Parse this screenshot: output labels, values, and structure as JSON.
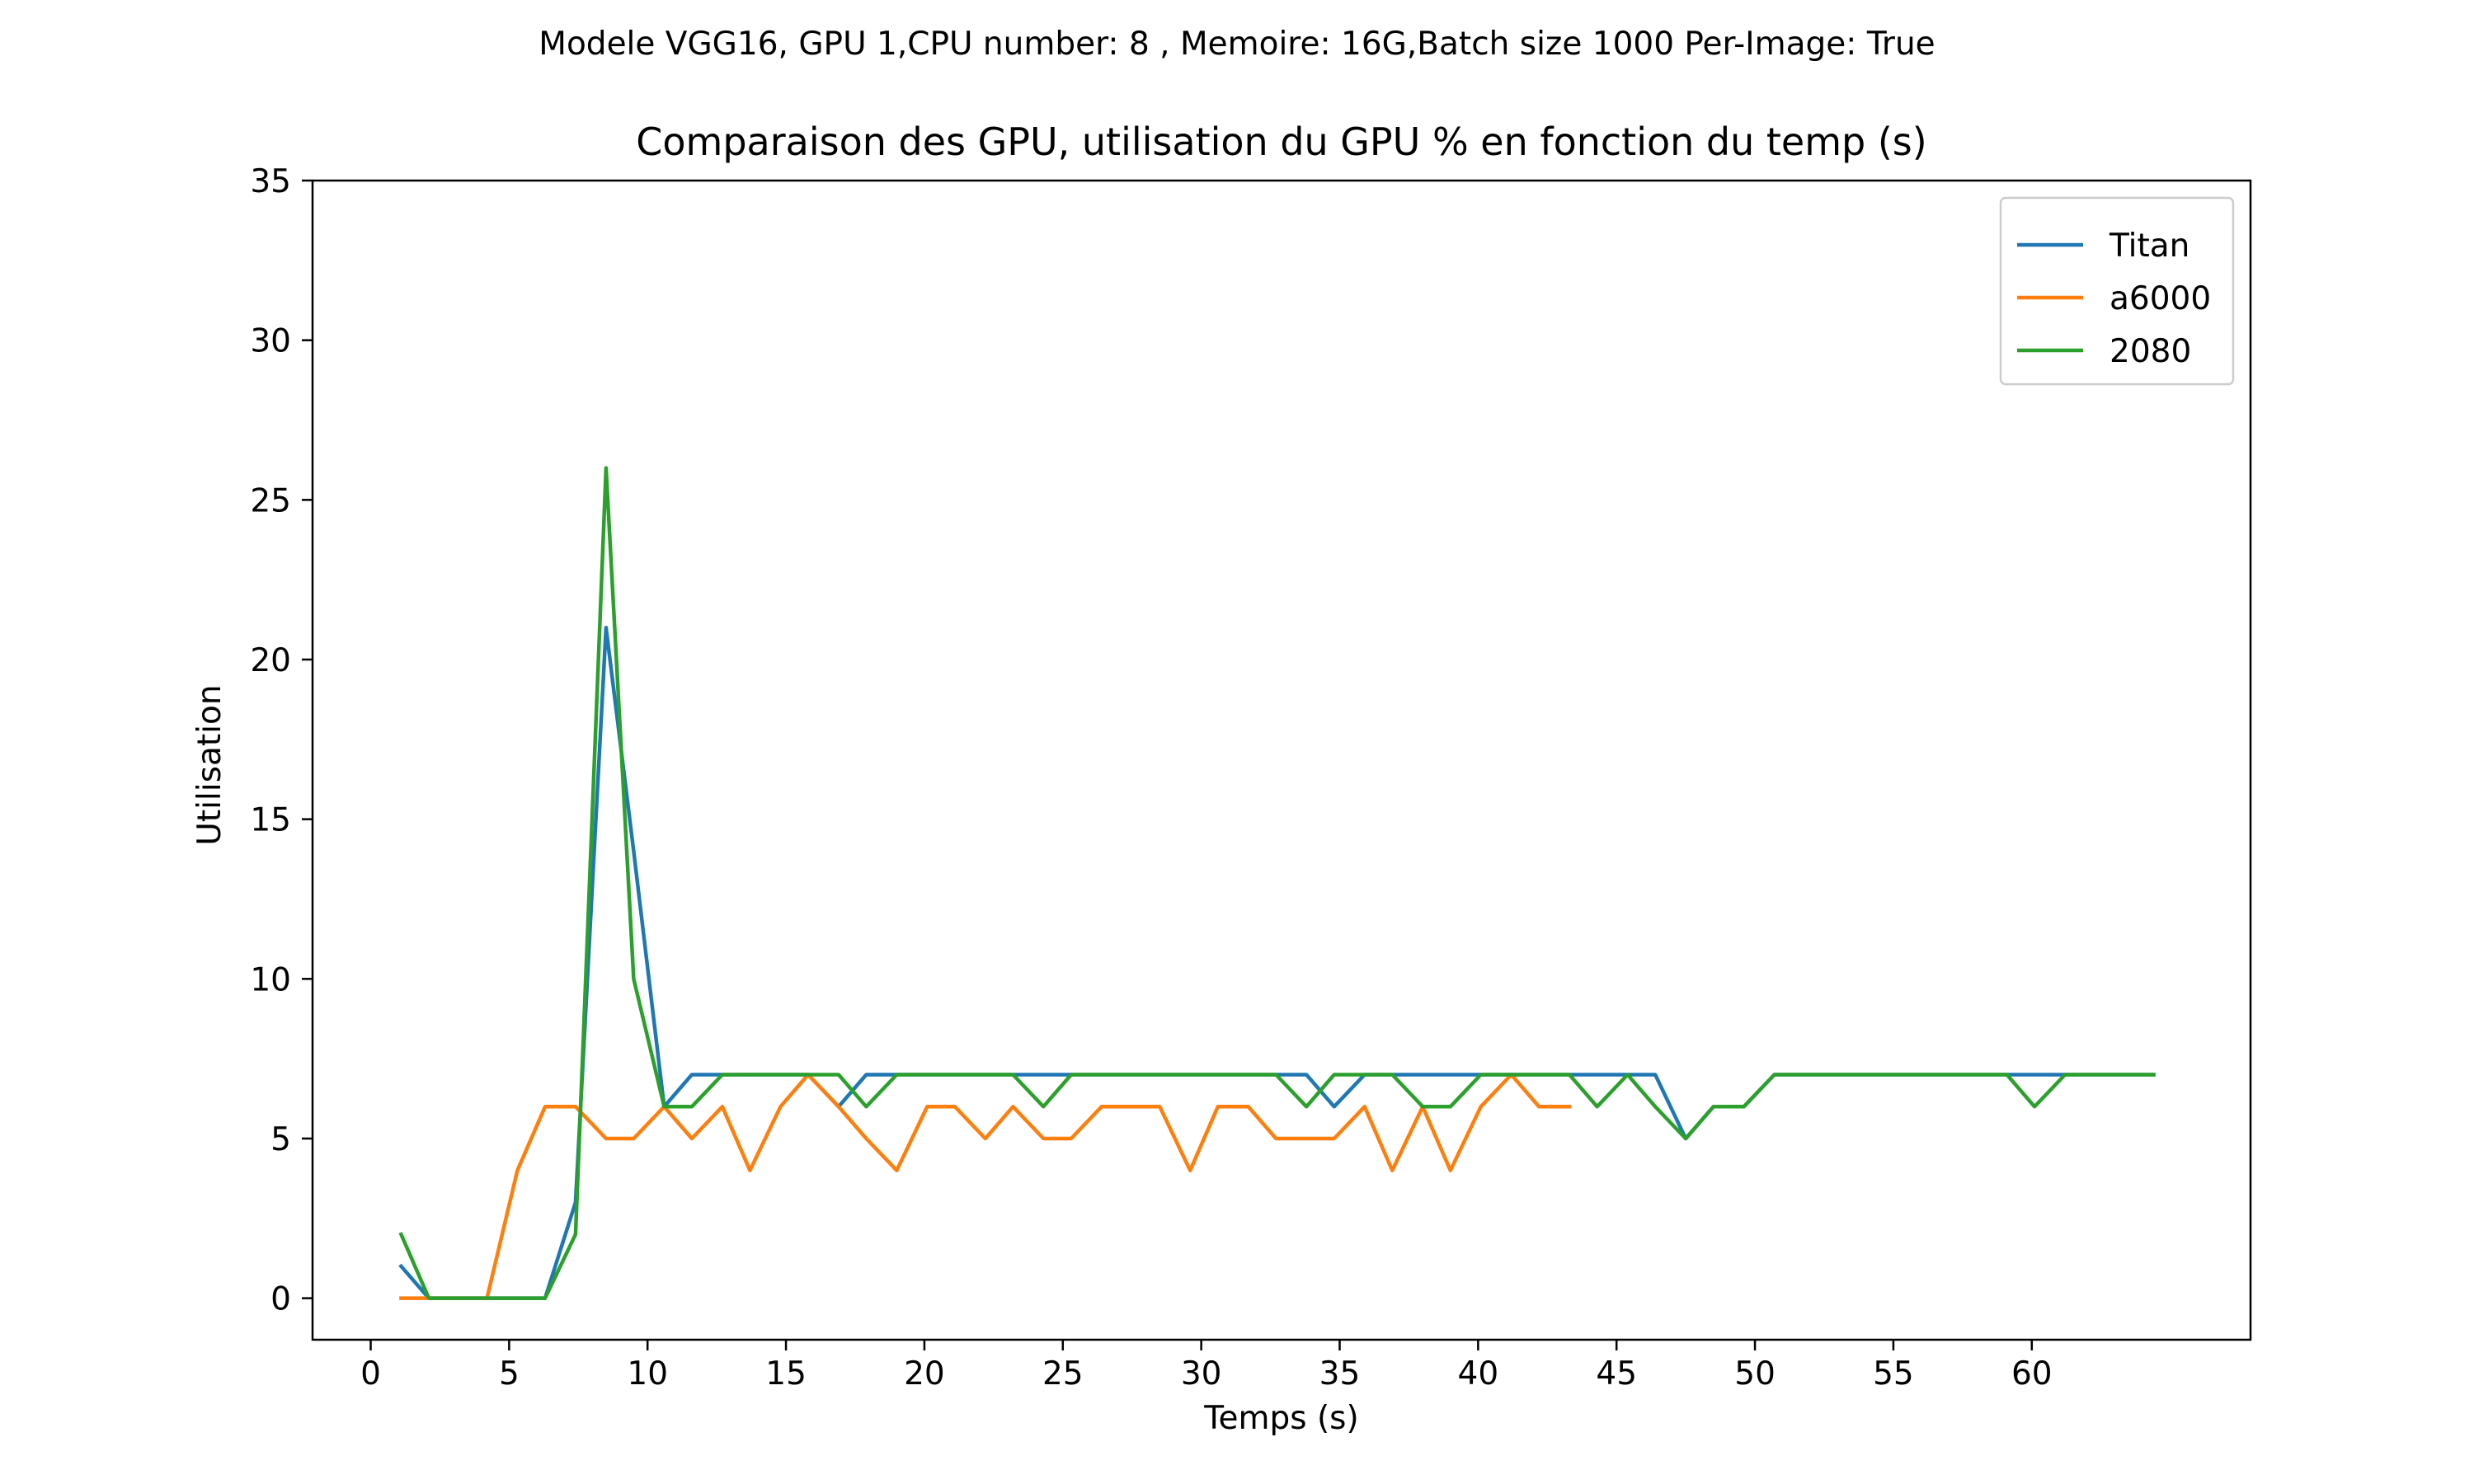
{
  "figure": {
    "suptitle": "Modele VGG16, GPU 1,CPU number: 8 , Memoire: 16G,Batch size 1000 Per-Image: True"
  },
  "chart_data": {
    "type": "line",
    "title": "Comparaison des GPU, utilisation du GPU % en fonction du temp (s)",
    "xlabel": "Temps (s)",
    "ylabel": "Utilisation",
    "xlim": [
      -2.1,
      67.9
    ],
    "ylim": [
      -1.3,
      35
    ],
    "xticks": [
      0,
      5,
      10,
      15,
      20,
      25,
      30,
      35,
      40,
      45,
      50,
      55,
      60
    ],
    "yticks": [
      0,
      5,
      10,
      15,
      20,
      25,
      30,
      35
    ],
    "grid": false,
    "legend_position": "top-right",
    "series": [
      {
        "name": "Titan",
        "color": "#1f77b4",
        "x": [
          1.1,
          2.1,
          3.2,
          4.2,
          5.3,
          6.3,
          7.4,
          8.5,
          9.5,
          10.6,
          11.6,
          12.7,
          13.7,
          14.8,
          15.8,
          16.9,
          17.9,
          19.0,
          20.1,
          21.1,
          22.2,
          23.2,
          24.3,
          25.3,
          26.4,
          27.4,
          28.5,
          29.6,
          30.6,
          31.7,
          32.7,
          33.8,
          34.8,
          35.9,
          36.9,
          38.0,
          39.0,
          40.1,
          41.2,
          42.2,
          43.3,
          44.3,
          45.4,
          46.4,
          47.5,
          48.5,
          49.6,
          50.7,
          51.7,
          52.8,
          53.8,
          54.9,
          55.9,
          57.0,
          58.0,
          59.1,
          60.1,
          61.2,
          62.3,
          63.3,
          64.4
        ],
        "values": [
          1,
          0,
          0,
          0,
          0,
          0,
          3,
          21,
          14,
          6,
          7,
          7,
          7,
          7,
          7,
          6,
          7,
          7,
          7,
          7,
          7,
          7,
          7,
          7,
          7,
          7,
          7,
          7,
          7,
          7,
          7,
          7,
          6,
          7,
          7,
          7,
          7,
          7,
          7,
          7,
          7,
          7,
          7,
          7,
          5,
          6,
          6,
          7,
          7,
          7,
          7,
          7,
          7,
          7,
          7,
          7,
          7,
          7,
          7,
          7,
          7
        ]
      },
      {
        "name": "a6000",
        "color": "#ff7f0e",
        "x": [
          1.1,
          2.1,
          3.2,
          4.2,
          5.3,
          6.3,
          7.4,
          8.5,
          9.5,
          10.6,
          11.6,
          12.7,
          13.7,
          14.8,
          15.8,
          16.9,
          17.9,
          19.0,
          20.1,
          21.1,
          22.2,
          23.2,
          24.3,
          25.3,
          26.4,
          27.4,
          28.5,
          29.6,
          30.6,
          31.7,
          32.7,
          33.8,
          34.8,
          35.9,
          36.9,
          38.0,
          39.0,
          40.1,
          41.2,
          42.2,
          43.3
        ],
        "values": [
          0,
          0,
          0,
          0,
          4,
          6,
          6,
          5,
          5,
          6,
          5,
          6,
          4,
          6,
          7,
          6,
          5,
          4,
          6,
          6,
          5,
          6,
          5,
          5,
          6,
          6,
          6,
          4,
          6,
          6,
          5,
          5,
          5,
          6,
          4,
          6,
          4,
          6,
          7,
          6,
          6
        ]
      },
      {
        "name": "2080",
        "color": "#2ca02c",
        "x": [
          1.1,
          2.1,
          3.2,
          4.2,
          5.3,
          6.3,
          7.4,
          8.5,
          9.5,
          10.6,
          11.6,
          12.7,
          13.7,
          14.8,
          15.8,
          16.9,
          17.9,
          19.0,
          20.1,
          21.1,
          22.2,
          23.2,
          24.3,
          25.3,
          26.4,
          27.4,
          28.5,
          29.6,
          30.6,
          31.7,
          32.7,
          33.8,
          34.8,
          35.9,
          36.9,
          38.0,
          39.0,
          40.1,
          41.2,
          42.2,
          43.3,
          44.3,
          45.4,
          46.4,
          47.5,
          48.5,
          49.6,
          50.7,
          51.7,
          52.8,
          53.8,
          54.9,
          55.9,
          57.0,
          58.0,
          59.1,
          60.1,
          61.2,
          62.3,
          63.3,
          64.4
        ],
        "values": [
          2,
          0,
          0,
          0,
          0,
          0,
          2,
          26,
          10,
          6,
          6,
          7,
          7,
          7,
          7,
          7,
          6,
          7,
          7,
          7,
          7,
          7,
          6,
          7,
          7,
          7,
          7,
          7,
          7,
          7,
          7,
          6,
          7,
          7,
          7,
          6,
          6,
          7,
          7,
          7,
          7,
          6,
          7,
          6,
          5,
          6,
          6,
          7,
          7,
          7,
          7,
          7,
          7,
          7,
          7,
          7,
          6,
          7,
          7,
          7,
          7
        ]
      }
    ]
  }
}
